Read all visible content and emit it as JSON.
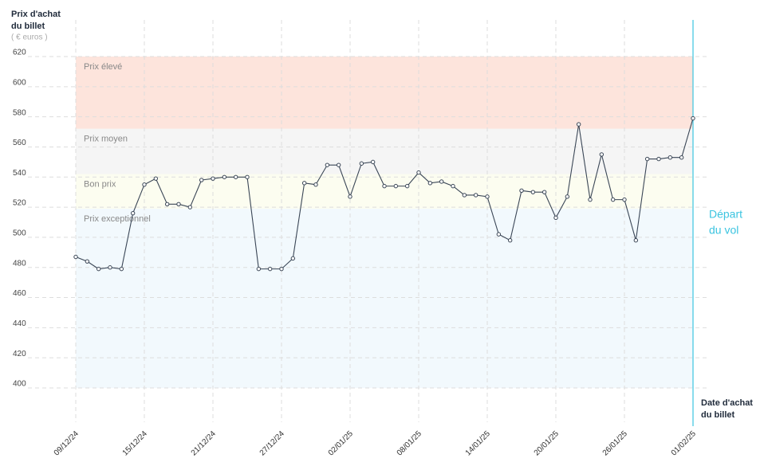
{
  "chart_data": {
    "type": "line",
    "y_label": [
      "Prix d'achat",
      "du billet"
    ],
    "y_unit": "( € euros )",
    "x_label": [
      "Date d'achat",
      "du billet"
    ],
    "annotation": [
      "Départ",
      "du vol"
    ],
    "categories": [
      "09/12/24",
      null,
      null,
      null,
      null,
      null,
      "15/12/24",
      null,
      null,
      null,
      null,
      null,
      "21/12/24",
      null,
      null,
      null,
      null,
      null,
      "27/12/24",
      null,
      null,
      null,
      null,
      null,
      "02/01/25",
      null,
      null,
      null,
      null,
      null,
      "08/01/25",
      null,
      null,
      null,
      null,
      null,
      "14/01/25",
      null,
      null,
      null,
      null,
      null,
      "20/01/25",
      null,
      null,
      null,
      null,
      null,
      "26/01/25",
      null,
      null,
      null,
      null,
      null,
      "01/02/25"
    ],
    "series": [
      {
        "color": "#3a4656",
        "values": [
          487,
          484,
          479,
          480,
          479,
          516,
          535,
          539,
          522,
          522,
          520,
          538,
          539,
          540,
          540,
          540,
          479,
          479,
          479,
          486,
          536,
          535,
          548,
          548,
          527,
          549,
          550,
          534,
          534,
          534,
          543,
          536,
          537,
          534,
          528,
          528,
          527,
          502,
          498,
          531,
          530,
          530,
          513,
          527,
          575,
          525,
          555,
          525,
          525,
          498,
          552,
          552,
          553,
          553,
          579
        ]
      }
    ],
    "bands": [
      {
        "label": "Prix élevé",
        "from": 572,
        "to": 620,
        "color": "#fde4dc"
      },
      {
        "label": "Prix moyen",
        "from": 542,
        "to": 572,
        "color": "#f5f5f5"
      },
      {
        "label": "Bon prix",
        "from": 519,
        "to": 542,
        "color": "#fcfdf0"
      },
      {
        "label": "Prix exceptionnel",
        "from": 400,
        "to": 519,
        "color": "#f2f9fd"
      }
    ],
    "ylim": [
      400,
      620
    ],
    "yticks": [
      400,
      420,
      440,
      460,
      480,
      500,
      520,
      540,
      560,
      580,
      600,
      620
    ],
    "grid": true,
    "departure_color": "#3bc4e0"
  }
}
